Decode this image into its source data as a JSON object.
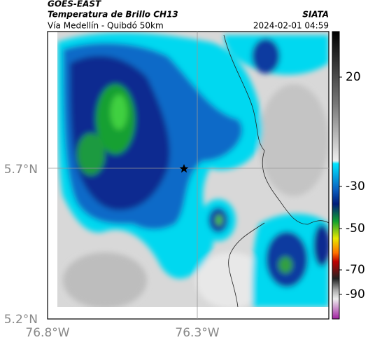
{
  "header": {
    "title": "GOES-EAST",
    "subtitle": "Temperatura de Brillo CH13",
    "location": "Vía Medellín - Quibdó 50km",
    "source": "SIATA",
    "datetime": "2024-02-01 04:59"
  },
  "map": {
    "lat_labels": [
      "5.7°N",
      "5.2°N"
    ],
    "lon_labels": [
      "76.8°W",
      "76.3°W"
    ]
  },
  "colorbar": {
    "ticks": [
      20,
      -30,
      -50,
      -70,
      -90
    ]
  }
}
